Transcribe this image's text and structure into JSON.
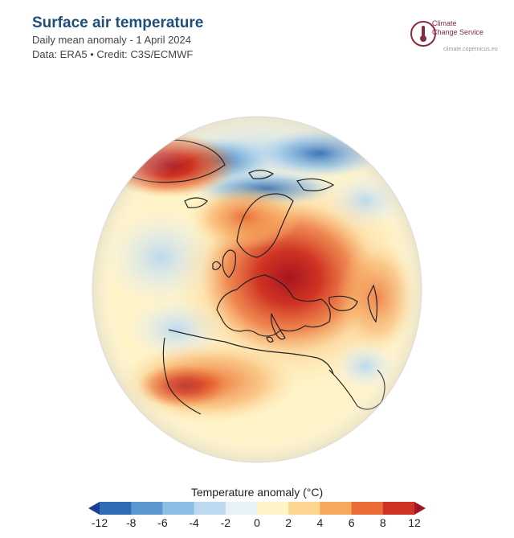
{
  "header": {
    "title": "Surface air temperature",
    "subtitle": "Daily mean anomaly - 1 April 2024",
    "credit": "Data: ERA5 • Credit: C3S/ECMWF"
  },
  "logo": {
    "line1": "Climate",
    "line2": "Change Service",
    "url": "climate.copernicus.eu",
    "color": "#8b2a3f"
  },
  "legend": {
    "title": "Temperature anomaly (°C)",
    "ticks": [
      "-12",
      "-8",
      "-6",
      "-4",
      "-2",
      "0",
      "2",
      "4",
      "6",
      "8",
      "12"
    ],
    "colors": [
      "#1b3f8f",
      "#2f6cb4",
      "#5b97cf",
      "#8cbde4",
      "#bcd9ef",
      "#e7f1f8",
      "#fff3c8",
      "#fcd690",
      "#f6a85c",
      "#ea6d37",
      "#cf3323",
      "#9e1523"
    ]
  }
}
